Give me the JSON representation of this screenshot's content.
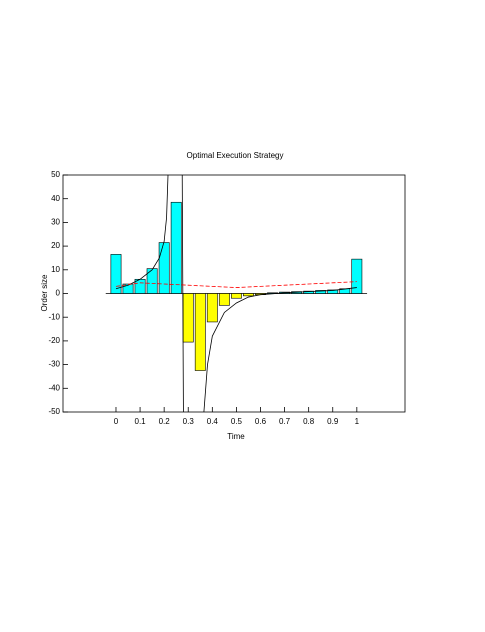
{
  "chart_data": {
    "type": "bar",
    "title": "Optimal Execution Strategy",
    "xlabel": "Time",
    "ylabel": "Order size",
    "x": [
      0,
      0.05,
      0.1,
      0.15,
      0.2,
      0.25,
      0.3,
      0.35,
      0.4,
      0.45,
      0.5,
      0.55,
      0.6,
      0.65,
      0.7,
      0.75,
      0.8,
      0.85,
      0.9,
      0.95,
      1
    ],
    "values": [
      16.5,
      4,
      6,
      10.5,
      21.5,
      38.5,
      -20.5,
      -32.5,
      -12,
      -5,
      -2,
      -1,
      -0.5,
      0.3,
      0.6,
      0.8,
      1,
      1.3,
      1.5,
      2,
      14.5
    ],
    "positive_color": "#00ffff",
    "negative_color": "#ffff00",
    "lines": [
      {
        "color": "#000000",
        "dashed": false,
        "x": [
          0,
          0.05,
          0.1,
          0.15,
          0.18,
          0.2,
          0.21,
          0.216,
          0.25,
          0.275,
          0.28,
          0.32,
          0.365,
          0.38,
          0.4,
          0.45,
          0.5,
          0.55,
          0.6,
          0.7,
          0.8,
          0.9,
          1
        ],
        "values": [
          2,
          3.5,
          6,
          10,
          15,
          22,
          32,
          50,
          null,
          50,
          -50,
          null,
          -50,
          -30,
          -18,
          -8,
          -4,
          -1.5,
          -0.5,
          0.3,
          0.8,
          1.3,
          2.5
        ]
      },
      {
        "color": "#ff0000",
        "dashed": true,
        "x": [
          0,
          0.1,
          0.2,
          0.3,
          0.4,
          0.5,
          0.6,
          0.7,
          0.8,
          0.9,
          1
        ],
        "values": [
          3,
          4.5,
          4,
          3.5,
          3,
          2.5,
          3,
          3.5,
          4,
          4.5,
          5
        ]
      }
    ],
    "xlim": [
      -0.22,
      1.2
    ],
    "ylim": [
      -50,
      50
    ],
    "xticks": [
      0,
      0.1,
      0.2,
      0.3,
      0.4,
      0.5,
      0.6,
      0.7,
      0.8,
      0.9,
      1
    ],
    "yticks": [
      -50,
      -40,
      -30,
      -20,
      -10,
      0,
      10,
      20,
      30,
      40,
      50
    ]
  }
}
